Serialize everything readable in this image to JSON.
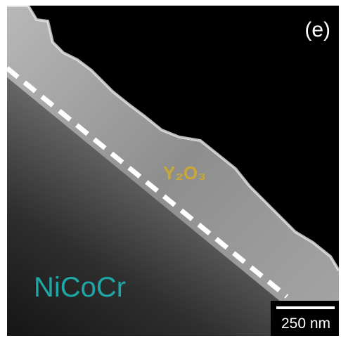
{
  "panel_label": "(e)",
  "oxide_label": "Y₂O₃",
  "substrate_label": "NiCoCr",
  "scale_bar_label": "250 nm"
}
